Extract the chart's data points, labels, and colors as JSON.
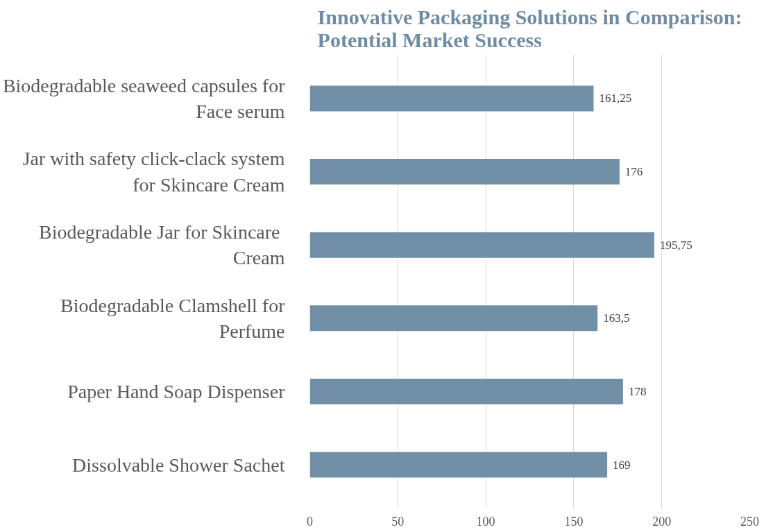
{
  "chart_data": {
    "type": "bar",
    "orientation": "horizontal",
    "title": "Innovative Packaging Solutions in Comparison: Potential Market Success",
    "categories": [
      "Biodegradable seaweed capsules for Face serum",
      "Jar with safety click-clack system for Skincare Cream",
      "Biodegradable Jar  for Skincare Cream",
      "Biodegradable Clamshell for Perfume",
      "Paper Hand Soap Dispenser",
      "Dissolvable Shower Sachet"
    ],
    "values": [
      161.25,
      176,
      195.75,
      163.5,
      178,
      169
    ],
    "value_labels": [
      "161,25",
      "176",
      "195,75",
      "163,5",
      "178",
      "169"
    ],
    "color": "#7190a8",
    "xlim": [
      0,
      250
    ],
    "xticks": [
      0,
      50,
      100,
      150,
      200,
      250
    ],
    "grid": "x"
  }
}
